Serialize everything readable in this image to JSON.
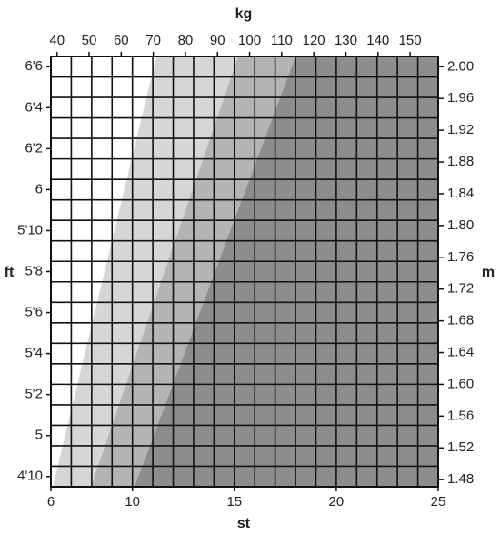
{
  "chart_data": {
    "type": "grid",
    "x_label_top": "kg",
    "x_label_bottom": "st",
    "y_label_left": "ft",
    "y_label_right": "m",
    "xlim": [
      6,
      25
    ],
    "xticks": [
      6,
      10,
      15,
      20,
      25
    ],
    "x2lim": [
      38.1,
      158.76
    ],
    "x2ticks": [
      40,
      50,
      60,
      70,
      80,
      90,
      100,
      110,
      120,
      130,
      140,
      150
    ],
    "ylim": [
      57.5,
      78.5
    ],
    "yticks": [
      {
        "value": 58,
        "label": "4'10"
      },
      {
        "value": 60,
        "label": "5"
      },
      {
        "value": 62,
        "label": "5'2"
      },
      {
        "value": 64,
        "label": "5'4"
      },
      {
        "value": 66,
        "label": "5'6"
      },
      {
        "value": 68,
        "label": "5'8"
      },
      {
        "value": 70,
        "label": "5'10"
      },
      {
        "value": 72,
        "label": "6"
      },
      {
        "value": 74,
        "label": "6'2"
      },
      {
        "value": 76,
        "label": "6'4"
      },
      {
        "value": 78,
        "label": "6'6"
      }
    ],
    "y2lim": [
      1.471,
      2.013
    ],
    "y2ticks": [
      1.48,
      1.52,
      1.56,
      1.6,
      1.64,
      1.68,
      1.72,
      1.76,
      1.8,
      1.84,
      1.88,
      1.92,
      1.96,
      2.0
    ]
  }
}
